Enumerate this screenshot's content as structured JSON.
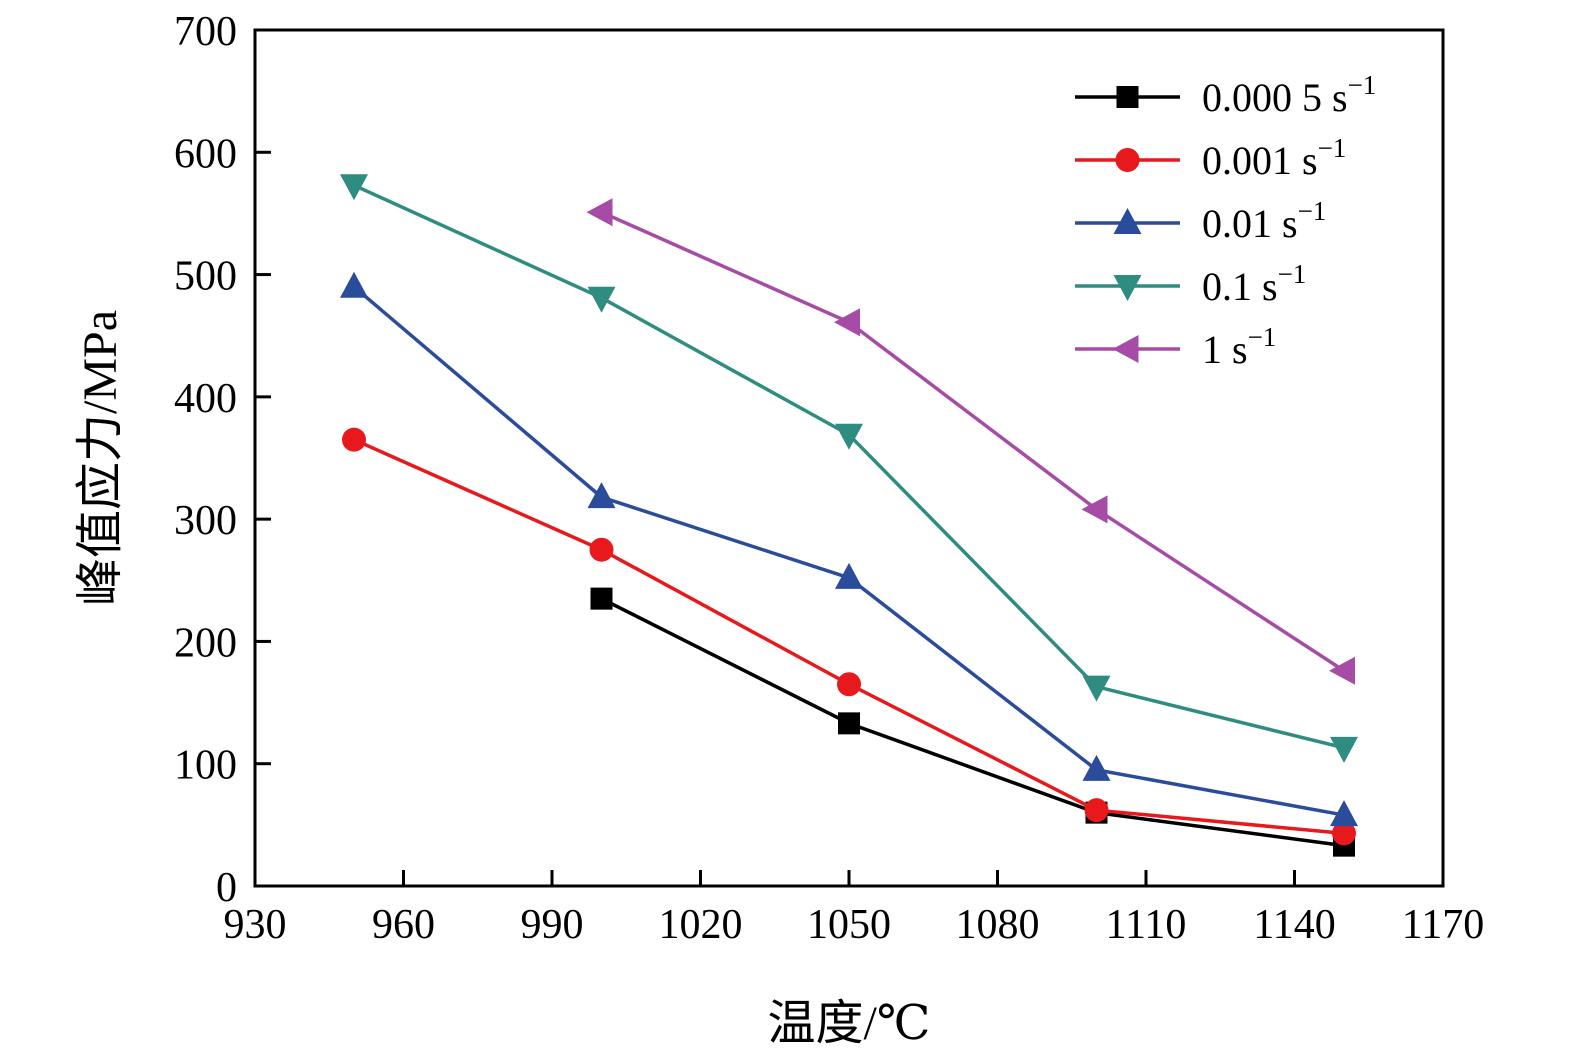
{
  "chart_data": {
    "type": "line",
    "title": "",
    "xlabel": "温度/℃",
    "ylabel": "峰值应力/MPa",
    "xlim": [
      930,
      1170
    ],
    "ylim": [
      0,
      700
    ],
    "x_ticks": [
      930,
      960,
      990,
      1020,
      1050,
      1080,
      1110,
      1140,
      1170
    ],
    "y_ticks": [
      0,
      100,
      200,
      300,
      400,
      500,
      600,
      700
    ],
    "grid": false,
    "legend_position": "top-right",
    "series": [
      {
        "name": "0.000 5 s⁻¹",
        "label_base": "0.000 5 s",
        "label_exp": "−1",
        "marker": "square",
        "color": "#000000",
        "x": [
          1000,
          1050,
          1100,
          1150
        ],
        "y": [
          235,
          133,
          60,
          33
        ]
      },
      {
        "name": "0.001 s⁻¹",
        "label_base": "0.001 s",
        "label_exp": "−1",
        "marker": "circle",
        "color": "#e8191c",
        "x": [
          950,
          1000,
          1050,
          1100,
          1150
        ],
        "y": [
          365,
          275,
          165,
          62,
          43
        ]
      },
      {
        "name": "0.01 s⁻¹",
        "label_base": "0.01 s",
        "label_exp": "−1",
        "marker": "triangle-up",
        "color": "#2b4b9b",
        "x": [
          950,
          1000,
          1050,
          1100,
          1150
        ],
        "y": [
          490,
          318,
          252,
          95,
          58
        ]
      },
      {
        "name": "0.1 s⁻¹",
        "label_base": "0.1 s",
        "label_exp": "−1",
        "marker": "triangle-down",
        "color": "#2f8c80",
        "x": [
          950,
          1000,
          1050,
          1100,
          1150
        ],
        "y": [
          573,
          481,
          369,
          163,
          113
        ]
      },
      {
        "name": "1 s⁻¹",
        "label_base": "1 s",
        "label_exp": "−1",
        "marker": "triangle-left",
        "color": "#a64ca6",
        "x": [
          1000,
          1050,
          1100,
          1150
        ],
        "y": [
          551,
          461,
          308,
          176
        ]
      }
    ]
  }
}
